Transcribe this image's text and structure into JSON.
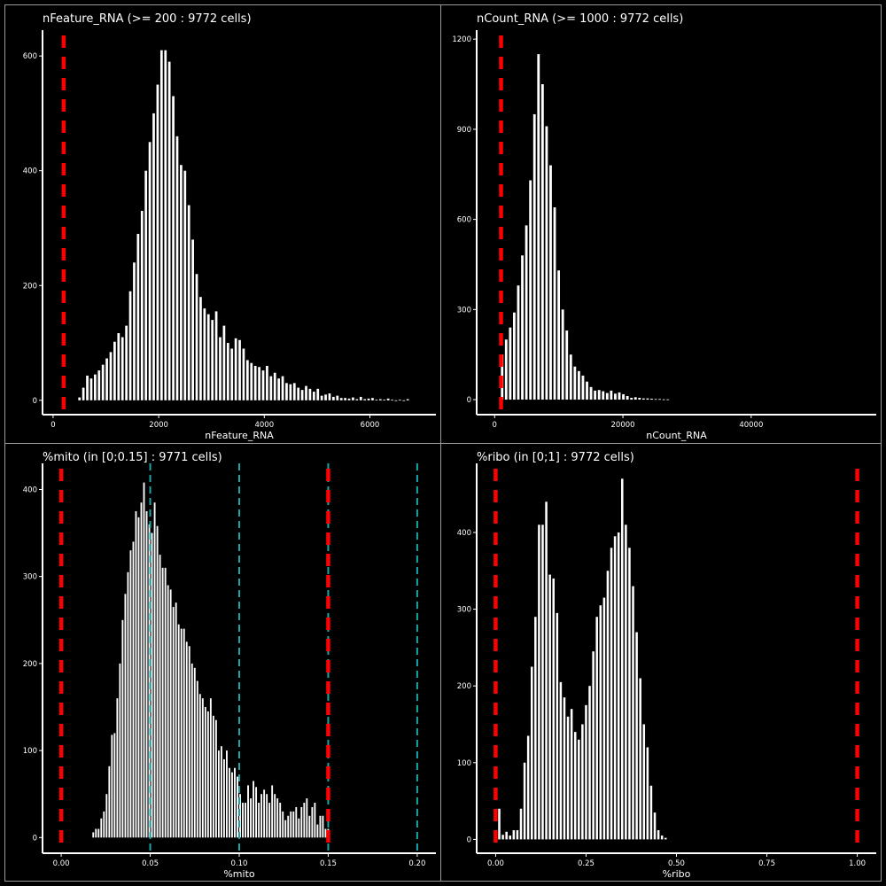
{
  "colors": {
    "background": "#000000",
    "bars": "#ffffff",
    "threshold": "#ff0000",
    "guide": "#1aa6a6"
  },
  "chart_data": [
    {
      "type": "bar",
      "title": "nFeature_RNA (>= 200 : 9772 cells)",
      "xlabel": "nFeature_RNA",
      "ylabel": "",
      "xlim": [
        -200,
        7250
      ],
      "ylim": [
        -25,
        645
      ],
      "xticks": [
        0,
        2000,
        4000,
        6000
      ],
      "yticks": [
        0,
        200,
        400,
        600
      ],
      "bin_width": 74,
      "threshold_lines": [
        200
      ],
      "guide_lines": [],
      "grid": false,
      "series": [
        {
          "x": [
            500,
            574,
            648,
            722,
            796,
            870,
            944,
            1018,
            1092,
            1166,
            1240,
            1314,
            1388,
            1462,
            1536,
            1610,
            1684,
            1758,
            1832,
            1906,
            1980,
            2054,
            2128,
            2202,
            2276,
            2350,
            2424,
            2498,
            2572,
            2646,
            2720,
            2794,
            2868,
            2942,
            3016,
            3090,
            3164,
            3238,
            3312,
            3386,
            3460,
            3534,
            3608,
            3682,
            3756,
            3830,
            3904,
            3978,
            4052,
            4126,
            4200,
            4274,
            4348,
            4422,
            4496,
            4570,
            4644,
            4718,
            4792,
            4866,
            4940,
            5014,
            5088,
            5162,
            5236,
            5310,
            5384,
            5458,
            5532,
            5606,
            5680,
            5754,
            5828,
            5902,
            5976,
            6050,
            6124,
            6198,
            6272,
            6346,
            6420,
            6494,
            6568,
            6642,
            6716
          ],
          "values": [
            5,
            22,
            43,
            38,
            45,
            52,
            62,
            73,
            84,
            102,
            117,
            110,
            130,
            190,
            240,
            290,
            330,
            400,
            450,
            500,
            550,
            610,
            610,
            590,
            530,
            460,
            410,
            400,
            340,
            280,
            220,
            180,
            160,
            150,
            140,
            155,
            110,
            130,
            100,
            90,
            108,
            105,
            90,
            70,
            65,
            60,
            58,
            52,
            60,
            42,
            48,
            38,
            42,
            30,
            28,
            30,
            22,
            18,
            25,
            20,
            15,
            20,
            8,
            10,
            12,
            6,
            8,
            4,
            4,
            3,
            5,
            2,
            6,
            2,
            3,
            4,
            1,
            2,
            1,
            3,
            1,
            0,
            1,
            0,
            2
          ]
        }
      ]
    },
    {
      "type": "bar",
      "title": "nCount_RNA (>= 1000 : 9772 cells)",
      "xlabel": "nCount_RNA",
      "ylabel": "",
      "xlim": [
        -2800,
        59500
      ],
      "ylim": [
        -50,
        1230
      ],
      "xticks": [
        0,
        20000,
        40000
      ],
      "yticks": [
        0,
        300,
        600,
        900,
        1200
      ],
      "bin_width": 630,
      "threshold_lines": [
        1000
      ],
      "guide_lines": [],
      "grid": false,
      "series": [
        {
          "x": [
            1170,
            1800,
            2430,
            3060,
            3690,
            4320,
            4950,
            5580,
            6210,
            6840,
            7470,
            8100,
            8730,
            9360,
            9990,
            10620,
            11250,
            11880,
            12510,
            13140,
            13770,
            14400,
            15030,
            15660,
            16290,
            16920,
            17550,
            18180,
            18810,
            19440,
            20070,
            20700,
            21330,
            21960,
            22590,
            23220,
            23850,
            24480,
            25110,
            25740,
            26370,
            27000
          ],
          "values": [
            150,
            200,
            240,
            290,
            380,
            480,
            580,
            730,
            950,
            1150,
            1050,
            910,
            780,
            640,
            430,
            300,
            230,
            150,
            110,
            95,
            80,
            60,
            42,
            30,
            32,
            28,
            22,
            30,
            20,
            24,
            18,
            12,
            6,
            8,
            6,
            4,
            4,
            3,
            2,
            2,
            1,
            1
          ]
        }
      ]
    },
    {
      "type": "bar",
      "title": "%mito (in [0;0.15] : 9771 cells)",
      "xlabel": "%mito",
      "ylabel": "",
      "xlim": [
        -0.0105,
        0.2105
      ],
      "ylim": [
        -18,
        430
      ],
      "xticks": [
        0.0,
        0.05,
        0.1,
        0.15,
        0.2
      ],
      "xtick_labels": [
        "0.00",
        "0.05",
        "0.10",
        "0.15",
        "0.20"
      ],
      "yticks": [
        0,
        100,
        200,
        300,
        400
      ],
      "bin_width": 0.0015,
      "threshold_lines": [
        0.0,
        0.15
      ],
      "guide_lines": [
        0.05,
        0.1,
        0.15,
        0.2
      ],
      "grid": false,
      "series": [
        {
          "x": [
            0.018,
            0.0195,
            0.021,
            0.0225,
            0.024,
            0.0255,
            0.027,
            0.0285,
            0.03,
            0.0315,
            0.033,
            0.0345,
            0.036,
            0.0375,
            0.039,
            0.0405,
            0.042,
            0.0435,
            0.045,
            0.0465,
            0.048,
            0.0495,
            0.051,
            0.0525,
            0.054,
            0.0555,
            0.057,
            0.0585,
            0.06,
            0.0615,
            0.063,
            0.0645,
            0.066,
            0.0675,
            0.069,
            0.0705,
            0.072,
            0.0735,
            0.075,
            0.0765,
            0.078,
            0.0795,
            0.081,
            0.0825,
            0.084,
            0.0855,
            0.087,
            0.0885,
            0.09,
            0.0915,
            0.093,
            0.0945,
            0.096,
            0.0975,
            0.099,
            0.1005,
            0.102,
            0.1035,
            0.105,
            0.1065,
            0.108,
            0.1095,
            0.111,
            0.1125,
            0.114,
            0.1155,
            0.117,
            0.1185,
            0.12,
            0.1215,
            0.123,
            0.1245,
            0.126,
            0.1275,
            0.129,
            0.1305,
            0.132,
            0.1335,
            0.135,
            0.1365,
            0.138,
            0.1395,
            0.141,
            0.1425,
            0.144,
            0.1455,
            0.147,
            0.1485,
            0.15
          ],
          "values": [
            6,
            10,
            10,
            22,
            30,
            50,
            82,
            118,
            120,
            160,
            200,
            250,
            280,
            305,
            330,
            340,
            375,
            368,
            385,
            408,
            375,
            360,
            350,
            385,
            358,
            325,
            310,
            310,
            290,
            285,
            265,
            270,
            245,
            240,
            240,
            225,
            220,
            200,
            195,
            180,
            165,
            160,
            150,
            145,
            160,
            140,
            135,
            100,
            105,
            90,
            100,
            80,
            75,
            80,
            70,
            50,
            40,
            40,
            60,
            45,
            65,
            58,
            40,
            50,
            55,
            50,
            40,
            60,
            50,
            45,
            40,
            30,
            20,
            25,
            30,
            30,
            35,
            22,
            35,
            40,
            45,
            25,
            35,
            40,
            15,
            25,
            25,
            10,
            10
          ]
        }
      ]
    },
    {
      "type": "bar",
      "title": "%ribo (in [0;1] : 9772 cells)",
      "xlabel": "%ribo",
      "ylabel": "",
      "xlim": [
        -0.0525,
        1.0525
      ],
      "ylim": [
        -18,
        490
      ],
      "xticks": [
        0.0,
        0.25,
        0.5,
        0.75,
        1.0
      ],
      "xtick_labels": [
        "0.00",
        "0.25",
        "0.50",
        "0.75",
        "1.00"
      ],
      "yticks": [
        0,
        100,
        200,
        300,
        400
      ],
      "bin_width": 0.01,
      "threshold_lines": [
        0.0,
        1.0
      ],
      "guide_lines": [],
      "grid": false,
      "series": [
        {
          "x": [
            0.0,
            0.01,
            0.02,
            0.03,
            0.04,
            0.05,
            0.06,
            0.07,
            0.08,
            0.09,
            0.1,
            0.11,
            0.12,
            0.13,
            0.14,
            0.15,
            0.16,
            0.17,
            0.18,
            0.19,
            0.2,
            0.21,
            0.22,
            0.23,
            0.24,
            0.25,
            0.26,
            0.27,
            0.28,
            0.29,
            0.3,
            0.31,
            0.32,
            0.33,
            0.34,
            0.35,
            0.36,
            0.37,
            0.38,
            0.39,
            0.4,
            0.41,
            0.42,
            0.43,
            0.44,
            0.45,
            0.46,
            0.47
          ],
          "values": [
            6,
            40,
            6,
            10,
            5,
            12,
            12,
            40,
            100,
            135,
            225,
            290,
            410,
            410,
            440,
            345,
            340,
            295,
            205,
            185,
            160,
            170,
            140,
            130,
            150,
            175,
            200,
            245,
            290,
            305,
            315,
            350,
            380,
            395,
            400,
            470,
            410,
            380,
            330,
            270,
            210,
            150,
            120,
            70,
            35,
            12,
            5,
            2
          ]
        }
      ]
    }
  ]
}
